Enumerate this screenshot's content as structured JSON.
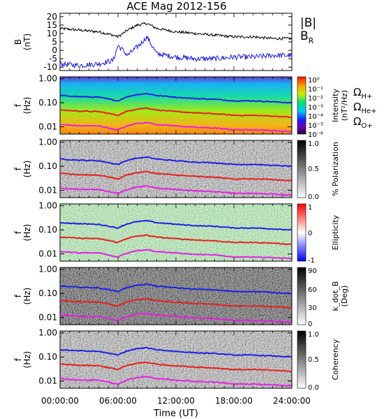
{
  "title": "ACE Mag 2012-156",
  "xaxis": {
    "label": "Time (UT)",
    "tick_labels": [
      "00:00:00",
      "06:00:00",
      "12:00:00",
      "18:00:00",
      "24:00:00"
    ]
  },
  "freq_axis": {
    "label_f": "f",
    "label_unit": "(Hz)",
    "tick_labels": [
      "1.00",
      "0.10",
      "0.01"
    ]
  },
  "colors": {
    "h_plus": "#1f1fe6",
    "he_plus": "#e61f1f",
    "o_plus": "#e61fe6",
    "b_total": "#000000",
    "b_r": "#1f1fe6"
  },
  "legends": {
    "b_total": "|B|",
    "b_r": "B",
    "b_r_sub": "R",
    "omega": "Ω",
    "h_plus_sub": "H+",
    "he_plus_sub": "He+",
    "o_plus_sub": "O+"
  },
  "panels": {
    "b_field": {
      "ylabel": "B",
      "yunit": "(nT)",
      "tick_labels": [
        "20",
        "15",
        "10",
        "5",
        "0",
        "-5",
        "-10"
      ]
    },
    "intensity": {
      "colorbar_title": "Intensity",
      "colorbar_unit": "(nT²/Hz)",
      "colorbar_ticks": [
        "10⁰",
        "10⁻¹",
        "10⁻²",
        "10⁻³",
        "10⁻⁴",
        "10⁻⁵",
        "10⁻⁶"
      ],
      "colormap": "rainbow"
    },
    "polarization": {
      "colorbar_title": "% Polarization",
      "colorbar_ticks": [
        "1.0",
        "0.5",
        "0.0"
      ],
      "colormap": "gray"
    },
    "ellipticity": {
      "colorbar_title": "Ellipticity",
      "colorbar_ticks": [
        "1",
        "0",
        "-1"
      ],
      "colormap": "blue-white-red"
    },
    "k_dot_b": {
      "colorbar_title": "k_dot_B",
      "colorbar_unit": "(Deg)",
      "colorbar_ticks": [
        "90",
        "60",
        "30",
        "0"
      ],
      "colormap": "gray"
    },
    "coherency": {
      "colorbar_title": "Coherency",
      "colorbar_ticks": [
        "1.0",
        "0.5",
        "0.0"
      ],
      "colormap": "gray"
    }
  },
  "chart_data": {
    "type": "line",
    "title": "ACE Mag 2012-156",
    "xlabel": "Time (UT)",
    "xlim": [
      0,
      24
    ],
    "x": [
      0,
      2,
      4,
      5.5,
      6,
      7,
      8,
      9,
      10,
      12,
      14,
      16,
      18,
      20,
      22,
      24
    ],
    "magnetic_field_panel": {
      "ylabel": "B (nT)",
      "ylim": [
        -12,
        22
      ],
      "series": [
        {
          "name": "|B|",
          "values": [
            13,
            12,
            11,
            9,
            8,
            12,
            15,
            16,
            13,
            11,
            10,
            9,
            8,
            8,
            7,
            7
          ]
        },
        {
          "name": "B_R",
          "values": [
            -8,
            -9,
            -8,
            -6,
            3,
            -3,
            2,
            8,
            -2,
            -4,
            -5,
            -5,
            -4,
            -4,
            -3,
            -3
          ]
        }
      ]
    },
    "gyrofrequency_lines": {
      "ylabel": "f (Hz)",
      "yscale": "log",
      "ylim": [
        0.005,
        1.2
      ],
      "series": [
        {
          "name": "ΩH+",
          "values": [
            0.2,
            0.18,
            0.17,
            0.13,
            0.12,
            0.18,
            0.22,
            0.24,
            0.2,
            0.17,
            0.15,
            0.14,
            0.12,
            0.12,
            0.11,
            0.1
          ]
        },
        {
          "name": "ΩHe+",
          "values": [
            0.05,
            0.045,
            0.043,
            0.033,
            0.03,
            0.045,
            0.055,
            0.06,
            0.05,
            0.043,
            0.038,
            0.035,
            0.03,
            0.03,
            0.028,
            0.025
          ]
        },
        {
          "name": "ΩO+",
          "values": [
            0.0125,
            0.011,
            0.011,
            0.008,
            0.0075,
            0.011,
            0.014,
            0.015,
            0.0125,
            0.011,
            0.0095,
            0.009,
            0.0075,
            0.0075,
            0.007,
            0.0063
          ]
        }
      ]
    }
  }
}
